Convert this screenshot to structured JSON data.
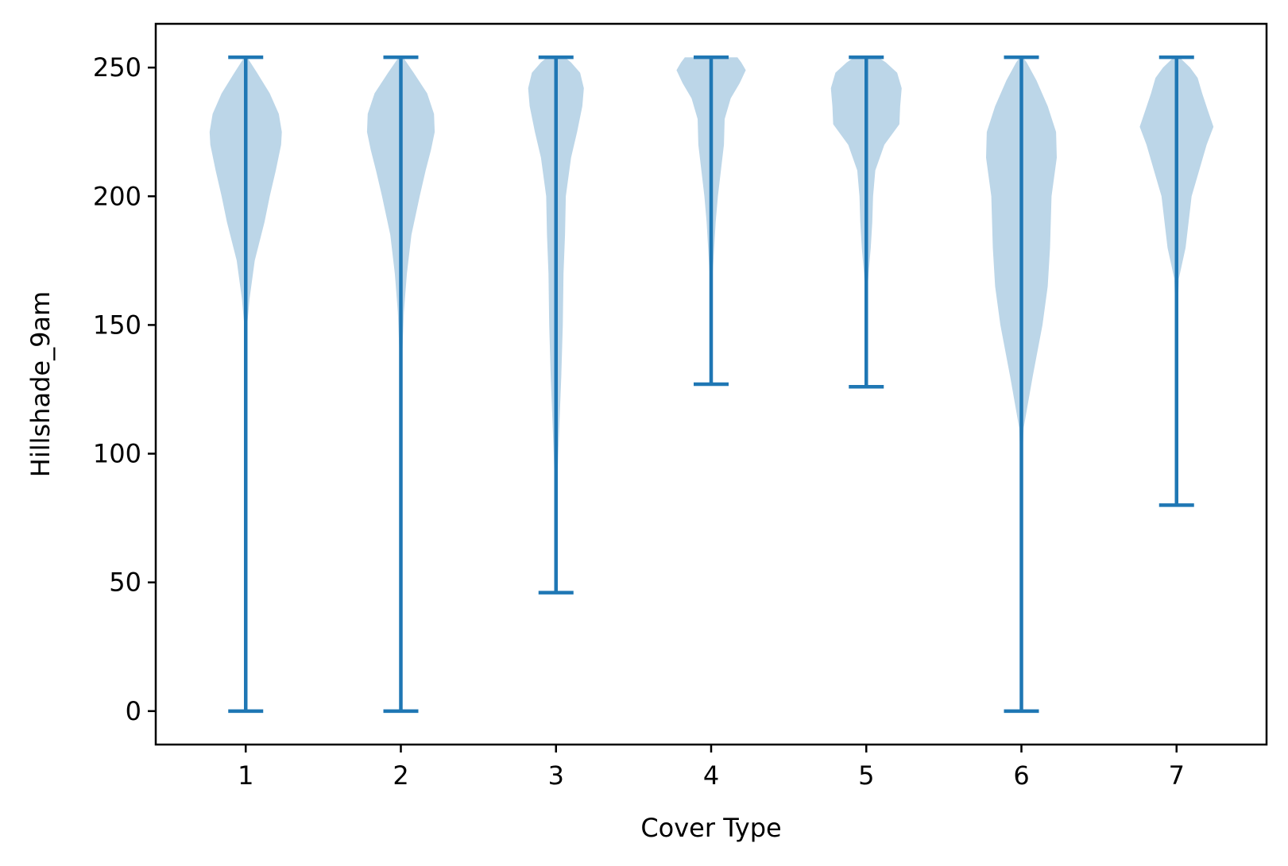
{
  "chart_data": {
    "type": "violin",
    "xlabel": "Cover Type",
    "ylabel": "Hillshade_9am",
    "categories": [
      "1",
      "2",
      "3",
      "4",
      "5",
      "6",
      "7"
    ],
    "yticks": [
      "0",
      "50",
      "100",
      "150",
      "200",
      "250"
    ],
    "ylim": [
      -13,
      267
    ],
    "xlim": [
      0.42,
      7.58
    ],
    "body_color": "#bcd6e8",
    "line_color": "#1f77b4",
    "series": [
      {
        "category": "1",
        "min": 0,
        "max": 254,
        "density": [
          [
            0,
            0
          ],
          [
            100,
            0.01
          ],
          [
            150,
            0.02
          ],
          [
            160,
            0.05
          ],
          [
            175,
            0.12
          ],
          [
            190,
            0.25
          ],
          [
            200,
            0.32
          ],
          [
            210,
            0.4
          ],
          [
            220,
            0.47
          ],
          [
            225,
            0.48
          ],
          [
            232,
            0.44
          ],
          [
            240,
            0.32
          ],
          [
            248,
            0.15
          ],
          [
            254,
            0.02
          ]
        ]
      },
      {
        "category": "2",
        "min": 0,
        "max": 254,
        "density": [
          [
            0,
            0
          ],
          [
            100,
            0.01
          ],
          [
            140,
            0.02
          ],
          [
            155,
            0.04
          ],
          [
            170,
            0.08
          ],
          [
            185,
            0.14
          ],
          [
            200,
            0.25
          ],
          [
            210,
            0.33
          ],
          [
            218,
            0.4
          ],
          [
            225,
            0.45
          ],
          [
            232,
            0.44
          ],
          [
            240,
            0.35
          ],
          [
            248,
            0.17
          ],
          [
            254,
            0.03
          ]
        ]
      },
      {
        "category": "3",
        "min": 46,
        "max": 254,
        "density": [
          [
            46,
            0
          ],
          [
            80,
            0.01
          ],
          [
            100,
            0.03
          ],
          [
            130,
            0.07
          ],
          [
            150,
            0.09
          ],
          [
            170,
            0.1
          ],
          [
            185,
            0.12
          ],
          [
            200,
            0.13
          ],
          [
            215,
            0.2
          ],
          [
            225,
            0.28
          ],
          [
            235,
            0.35
          ],
          [
            242,
            0.37
          ],
          [
            248,
            0.32
          ],
          [
            252,
            0.2
          ],
          [
            254,
            0.12
          ]
        ]
      },
      {
        "category": "4",
        "min": 127,
        "max": 254,
        "density": [
          [
            127,
            0
          ],
          [
            160,
            0.01
          ],
          [
            170,
            0.02
          ],
          [
            180,
            0.04
          ],
          [
            190,
            0.06
          ],
          [
            200,
            0.09
          ],
          [
            210,
            0.13
          ],
          [
            220,
            0.17
          ],
          [
            230,
            0.18
          ],
          [
            238,
            0.26
          ],
          [
            244,
            0.38
          ],
          [
            249,
            0.46
          ],
          [
            252,
            0.4
          ],
          [
            254,
            0.35
          ]
        ]
      },
      {
        "category": "5",
        "min": 126,
        "max": 254,
        "density": [
          [
            126,
            0
          ],
          [
            160,
            0.01
          ],
          [
            170,
            0.03
          ],
          [
            180,
            0.06
          ],
          [
            190,
            0.08
          ],
          [
            200,
            0.09
          ],
          [
            210,
            0.12
          ],
          [
            220,
            0.24
          ],
          [
            228,
            0.44
          ],
          [
            235,
            0.45
          ],
          [
            242,
            0.47
          ],
          [
            248,
            0.41
          ],
          [
            252,
            0.26
          ],
          [
            254,
            0.16
          ]
        ]
      },
      {
        "category": "6",
        "min": 0,
        "max": 254,
        "density": [
          [
            0,
            0
          ],
          [
            95,
            0.01
          ],
          [
            110,
            0.03
          ],
          [
            130,
            0.15
          ],
          [
            150,
            0.28
          ],
          [
            165,
            0.35
          ],
          [
            180,
            0.38
          ],
          [
            200,
            0.4
          ],
          [
            215,
            0.47
          ],
          [
            225,
            0.46
          ],
          [
            235,
            0.35
          ],
          [
            245,
            0.2
          ],
          [
            252,
            0.07
          ],
          [
            254,
            0.02
          ]
        ]
      },
      {
        "category": "7",
        "min": 80,
        "max": 254,
        "density": [
          [
            80,
            0
          ],
          [
            150,
            0.01
          ],
          [
            168,
            0.03
          ],
          [
            180,
            0.12
          ],
          [
            190,
            0.16
          ],
          [
            200,
            0.2
          ],
          [
            210,
            0.3
          ],
          [
            220,
            0.4
          ],
          [
            227,
            0.49
          ],
          [
            233,
            0.42
          ],
          [
            240,
            0.34
          ],
          [
            246,
            0.28
          ],
          [
            250,
            0.18
          ],
          [
            254,
            0.04
          ]
        ]
      }
    ]
  }
}
